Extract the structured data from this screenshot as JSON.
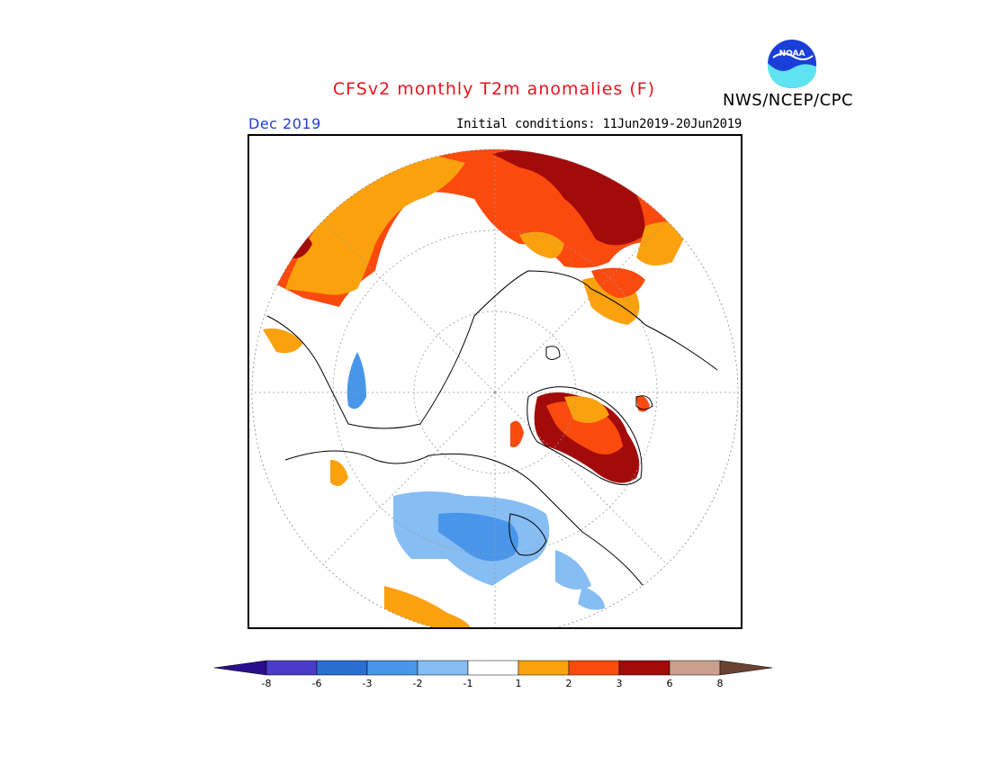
{
  "title": "CFSv2 monthly T2m anomalies (F)",
  "agency": "NWS/NCEP/CPC",
  "logo_text": "NOAA",
  "valid_month": "Dec 2019",
  "initial_conditions": "Initial conditions: 11Jun2019-20Jun2019",
  "colors": {
    "title": "#e8141e",
    "valid_month": "#1f3fd1"
  },
  "legend": {
    "labels": [
      "-8",
      "-6",
      "-3",
      "-2",
      "-1",
      "1",
      "2",
      "3",
      "6",
      "8"
    ],
    "bins": [
      {
        "range": "<-8",
        "color": "#2a0f8c"
      },
      {
        "range": "-8 to -6",
        "color": "#4a3cc8"
      },
      {
        "range": "-6 to -3",
        "color": "#2a6fd0"
      },
      {
        "range": "-3 to -2",
        "color": "#4896ea"
      },
      {
        "range": "-2 to -1",
        "color": "#86bdf3"
      },
      {
        "range": "-1 to 1",
        "color": "#ffffff"
      },
      {
        "range": "1 to 2",
        "color": "#fba10d"
      },
      {
        "range": "2 to 3",
        "color": "#fb4a0e"
      },
      {
        "range": "3 to 6",
        "color": "#a30a0a"
      },
      {
        "range": "6 to 8",
        "color": "#c9a08e"
      },
      {
        "range": ">8",
        "color": "#6a4232"
      }
    ]
  }
}
